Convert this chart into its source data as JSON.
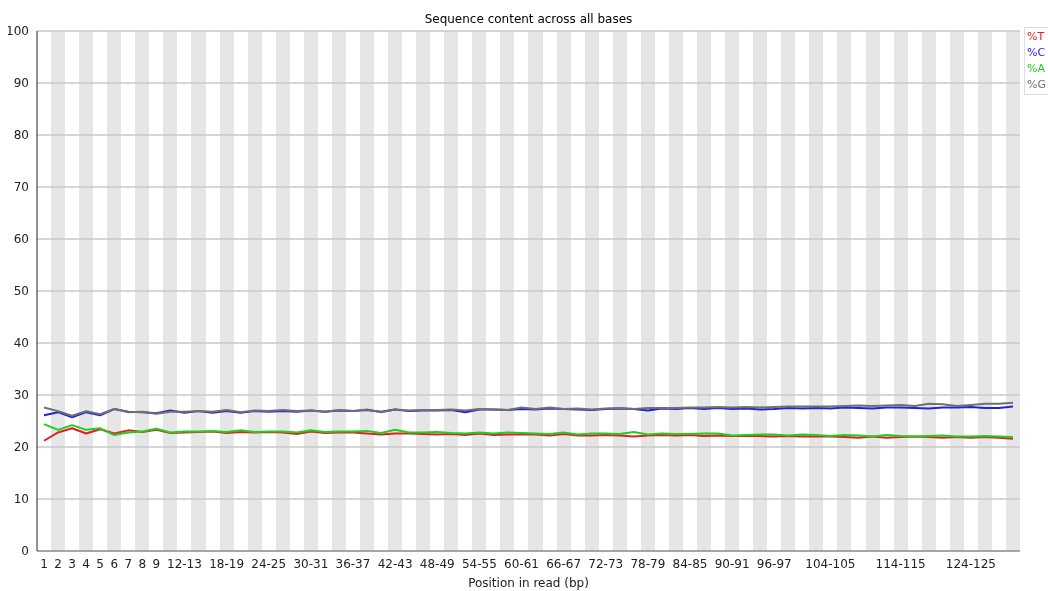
{
  "chart_data": {
    "type": "line",
    "title": "Sequence content across all bases",
    "xlabel": "Position in read (bp)",
    "categories": [
      "1",
      "2",
      "3",
      "4",
      "5",
      "6",
      "7",
      "8",
      "9",
      null,
      "12-13",
      null,
      null,
      "18-19",
      null,
      null,
      "24-25",
      null,
      null,
      "30-31",
      null,
      null,
      "36-37",
      null,
      null,
      "42-43",
      null,
      null,
      "48-49",
      null,
      null,
      "54-55",
      null,
      null,
      "60-61",
      null,
      null,
      "66-67",
      null,
      null,
      "72-73",
      null,
      null,
      "78-79",
      null,
      null,
      "84-85",
      null,
      null,
      "90-91",
      null,
      null,
      "96-97",
      null,
      null,
      null,
      "104-105",
      null,
      null,
      null,
      null,
      "114-115",
      null,
      null,
      null,
      null,
      "124-125",
      null,
      null,
      null
    ],
    "series": [
      {
        "name": "%T",
        "color": "#dd2222",
        "values": [
          21.2,
          22.8,
          23.6,
          22.6,
          23.4,
          22.6,
          23.2,
          22.9,
          23.3,
          22.7,
          22.8,
          22.9,
          23.0,
          22.7,
          22.9,
          22.8,
          22.9,
          22.8,
          22.5,
          23.0,
          22.7,
          22.8,
          22.8,
          22.6,
          22.4,
          22.6,
          22.6,
          22.5,
          22.4,
          22.5,
          22.3,
          22.6,
          22.3,
          22.4,
          22.4,
          22.4,
          22.2,
          22.5,
          22.2,
          22.2,
          22.3,
          22.2,
          22.0,
          22.2,
          22.3,
          22.2,
          22.3,
          22.1,
          22.2,
          22.1,
          22.1,
          22.1,
          22.0,
          22.1,
          22.0,
          22.0,
          22.0,
          21.9,
          21.8,
          22.0,
          21.8,
          21.9,
          22.0,
          21.9,
          21.8,
          21.9,
          21.8,
          21.9,
          21.8,
          21.6
        ]
      },
      {
        "name": "%C",
        "color": "#2222dd",
        "values": [
          26.1,
          26.7,
          25.7,
          26.7,
          26.1,
          27.3,
          26.8,
          26.7,
          26.5,
          27.0,
          26.6,
          26.9,
          26.6,
          26.9,
          26.6,
          26.9,
          26.8,
          26.9,
          26.8,
          27.0,
          26.8,
          27.0,
          26.9,
          27.1,
          26.8,
          27.2,
          26.9,
          27.0,
          27.0,
          27.1,
          26.7,
          27.2,
          27.2,
          27.1,
          27.3,
          27.2,
          27.4,
          27.3,
          27.2,
          27.1,
          27.3,
          27.4,
          27.3,
          27.0,
          27.4,
          27.3,
          27.5,
          27.3,
          27.5,
          27.3,
          27.4,
          27.2,
          27.3,
          27.5,
          27.4,
          27.5,
          27.4,
          27.6,
          27.5,
          27.4,
          27.6,
          27.6,
          27.5,
          27.4,
          27.6,
          27.6,
          27.7,
          27.5,
          27.5,
          27.8
        ]
      },
      {
        "name": "%A",
        "color": "#22cc22",
        "values": [
          24.4,
          23.3,
          24.2,
          23.3,
          23.6,
          22.3,
          22.8,
          23.0,
          23.5,
          22.8,
          23.0,
          23.0,
          23.1,
          22.9,
          23.2,
          22.9,
          23.0,
          23.0,
          22.8,
          23.2,
          22.9,
          23.0,
          23.0,
          23.1,
          22.7,
          23.3,
          22.8,
          22.8,
          22.9,
          22.7,
          22.6,
          22.8,
          22.6,
          22.8,
          22.7,
          22.6,
          22.5,
          22.8,
          22.4,
          22.6,
          22.6,
          22.5,
          22.9,
          22.4,
          22.6,
          22.5,
          22.5,
          22.6,
          22.6,
          22.2,
          22.3,
          22.4,
          22.4,
          22.2,
          22.4,
          22.3,
          22.1,
          22.3,
          22.2,
          22.0,
          22.3,
          22.1,
          22.0,
          22.1,
          22.2,
          22.0,
          22.0,
          22.1,
          22.0,
          21.9
        ]
      },
      {
        "name": "%G",
        "color": "#707070",
        "values": [
          27.6,
          26.9,
          26.0,
          26.9,
          26.3,
          27.3,
          26.7,
          26.8,
          26.4,
          26.8,
          26.8,
          26.9,
          26.8,
          27.1,
          26.7,
          27.0,
          26.9,
          27.1,
          26.9,
          27.0,
          26.8,
          27.1,
          26.9,
          27.2,
          26.7,
          27.2,
          27.0,
          27.1,
          27.1,
          27.2,
          27.0,
          27.3,
          27.2,
          27.1,
          27.6,
          27.3,
          27.6,
          27.3,
          27.4,
          27.2,
          27.4,
          27.5,
          27.3,
          27.5,
          27.5,
          27.5,
          27.6,
          27.6,
          27.7,
          27.6,
          27.7,
          27.6,
          27.7,
          27.8,
          27.8,
          27.8,
          27.8,
          27.9,
          28.0,
          27.9,
          28.0,
          28.1,
          27.9,
          28.3,
          28.2,
          27.9,
          28.1,
          28.3,
          28.3,
          28.5
        ]
      }
    ],
    "ylim": [
      0,
      100
    ],
    "yticks": [
      0,
      10,
      20,
      30,
      40,
      50,
      60,
      70,
      80,
      90,
      100
    ],
    "grid": "y",
    "legend": "top right",
    "marker": "none",
    "line_style": "solid"
  }
}
